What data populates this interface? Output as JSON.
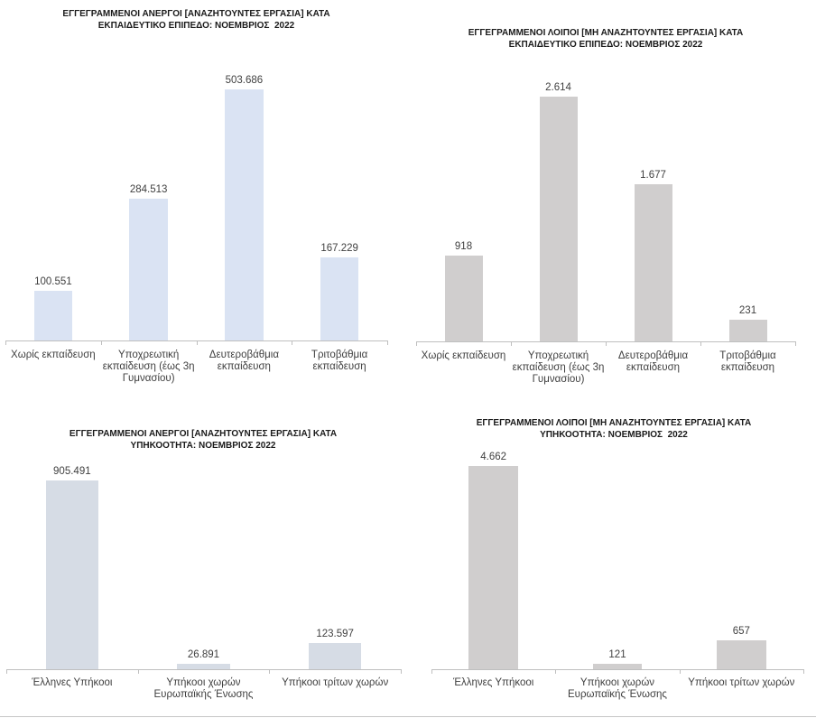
{
  "chart_data": [
    {
      "type": "bar",
      "title": "ΕΓΓΕΓΡΑΜΜΕΝΟΙ ΑΝΕΡΓΟΙ [ΑΝΑΖΗΤΟΥΝΤΕΣ ΕΡΓΑΣΙΑ] ΚΑΤΑ\nΕΚΠΑΙΔΕΥΤΙΚΟ ΕΠΙΠΕΔΟ: ΝΟΕΜΒΡΙΟΣ  2022",
      "categories": [
        "Χωρίς εκπαίδευση",
        "Υποχρεωτική\nεκπαίδευση (έως 3η\nΓυμνασίου)",
        "Δευτεροβάθμια\nεκπαίδευση",
        "Τριτοβάθμια\nεκπαίδευση"
      ],
      "values": [
        100551,
        284513,
        503686,
        167229
      ],
      "data_labels": [
        "100.551",
        "284.513",
        "503.686",
        "167.229"
      ],
      "ylim": [
        0,
        600000
      ],
      "grid": false,
      "legend": "none",
      "bar_color": "#dae3f3"
    },
    {
      "type": "bar",
      "title": "ΕΓΓΕΓΡΑΜΜΕΝΟΙ ΛΟΙΠΟΙ [ΜΗ ΑΝΑΖΗΤΟΥΝΤΕΣ ΕΡΓΑΣΙΑ] ΚΑΤΑ\nΕΚΠΑΙΔΕΥΤΙΚΟ ΕΠΙΠΕΔΟ: ΝΟΕΜΒΡΙΟΣ 2022",
      "categories": [
        "Χωρίς εκπαίδευση",
        "Υποχρεωτική\nεκπαίδευση (έως 3η\nΓυμνασίου)",
        "Δευτεροβάθμια\nεκπαίδευση",
        "Τριτοβάθμια\nεκπαίδευση"
      ],
      "values": [
        918,
        2614,
        1677,
        231
      ],
      "data_labels": [
        "918",
        "2.614",
        "1.677",
        "231"
      ],
      "ylim": [
        0,
        3000
      ],
      "grid": false,
      "legend": "none",
      "bar_color": "#d0cece"
    },
    {
      "type": "bar",
      "title": "ΕΓΓΕΓΡΑΜΜΕΝΟΙ ΑΝΕΡΓΟΙ [ΑΝΑΖΗΤΟΥΝΤΕΣ ΕΡΓΑΣΙΑ] ΚΑΤΑ\nΥΠΗΚΟΟΤΗΤΑ: ΝΟΕΜΒΡΙΟΣ 2022",
      "categories": [
        "Έλληνες Υπήκοοι",
        "Υπήκοοι χωρών\nΕυρωπαϊκής Ένωσης",
        "Υπήκοοι τρίτων χωρών"
      ],
      "values": [
        905491,
        26891,
        123597
      ],
      "data_labels": [
        "905.491",
        "26.891",
        "123.597"
      ],
      "ylim": [
        0,
        1000000
      ],
      "grid": false,
      "legend": "none",
      "bar_color": "#d6dce5"
    },
    {
      "type": "bar",
      "title": "ΕΓΓΕΓΡΑΜΜΕΝΟΙ ΛΟΙΠΟΙ [ΜΗ ΑΝΑΖΗΤΟΥΝΤΕΣ ΕΡΓΑΣΙΑ] ΚΑΤΑ\nΥΠΗΚΟΟΤΗΤΑ: ΝΟΕΜΒΡΙΟΣ  2022",
      "categories": [
        "Έλληνες Υπήκοοι",
        "Υπήκοοι χωρών\nΕυρωπαϊκής Ένωσης",
        "Υπήκοοι τρίτων χωρών"
      ],
      "values": [
        4662,
        121,
        657
      ],
      "data_labels": [
        "4.662",
        "121",
        "657"
      ],
      "ylim": [
        0,
        5000
      ],
      "grid": false,
      "legend": "none",
      "bar_color": "#d0cece"
    }
  ]
}
